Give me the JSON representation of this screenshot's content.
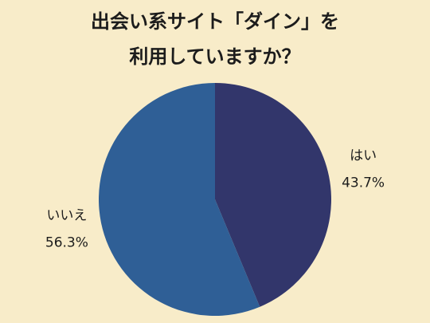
{
  "chart_data": {
    "type": "pie",
    "title": [
      "出会い系サイト「ダイン」を",
      "利用していますか？"
    ],
    "categories": [
      "はい",
      "いいえ"
    ],
    "values": [
      43.7,
      56.3
    ],
    "value_labels": [
      "43.7%",
      "56.3%"
    ],
    "colors": [
      "#32366b",
      "#2f5f96"
    ]
  }
}
